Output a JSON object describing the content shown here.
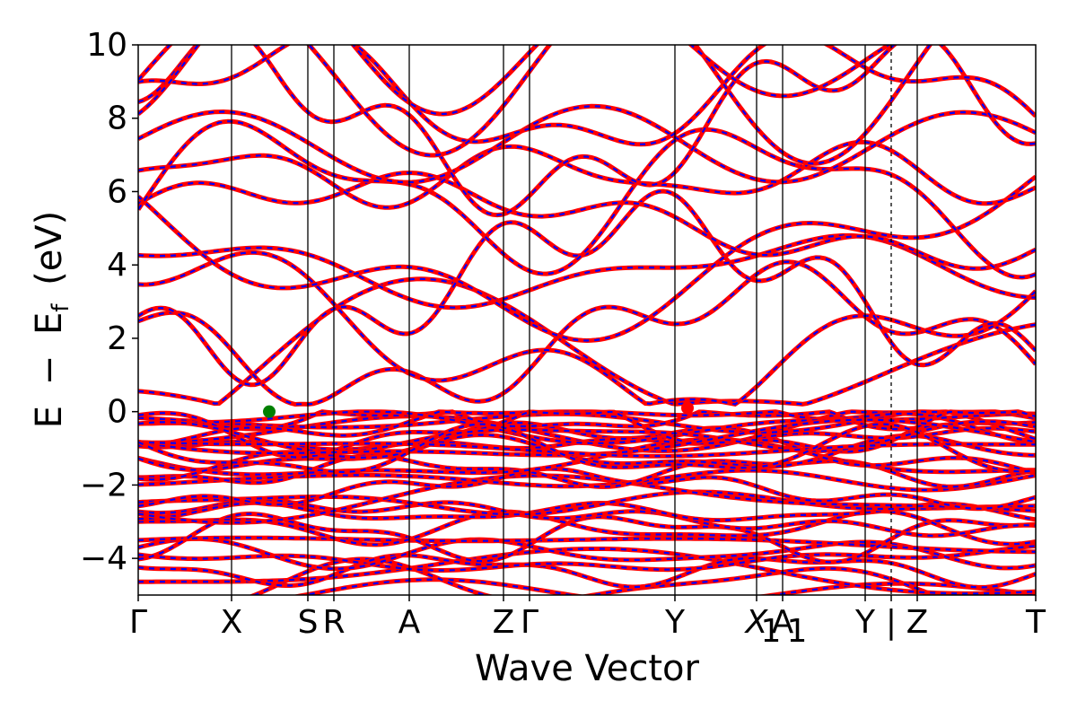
{
  "chart_data": {
    "type": "line",
    "title": "",
    "xlabel": "Wave Vector",
    "ylabel_parts": {
      "e": "E",
      "minus": "−",
      "ef": "E",
      "ef_sub": "f",
      "unit": "(eV)"
    },
    "ylim": [
      -5,
      10
    ],
    "yticks": [
      -4,
      -2,
      0,
      2,
      4,
      6,
      8,
      10
    ],
    "ytick_labels": [
      "−4",
      "−2",
      "0",
      "2",
      "4",
      "6",
      "8",
      "10"
    ],
    "xlim": [
      0,
      100
    ],
    "high_symmetry_points": [
      {
        "x": 0.0,
        "label": "Γ"
      },
      {
        "x": 10.4,
        "label": "X"
      },
      {
        "x": 18.9,
        "label": "S"
      },
      {
        "x": 21.8,
        "label": "R"
      },
      {
        "x": 30.2,
        "label": "A"
      },
      {
        "x": 40.7,
        "label": "Z"
      },
      {
        "x": 43.6,
        "label": "Γ"
      },
      {
        "x": 59.8,
        "label": "Y"
      },
      {
        "x": 68.9,
        "label": "X"
      },
      {
        "x": 71.8,
        "label": "A"
      },
      {
        "x": 81.0,
        "label": "Y"
      },
      {
        "x": 83.9,
        "label": "|"
      },
      {
        "x": 86.8,
        "label": "Z"
      },
      {
        "x": 100.0,
        "label": "T"
      }
    ],
    "x1_subscript": "1",
    "a1_subscript": "1",
    "segment_break_x": 83.9,
    "series": [
      {
        "style": "solid",
        "color": "#ff0000"
      },
      {
        "style": "dashed",
        "color": "#0000ff"
      }
    ],
    "markers": [
      {
        "role": "vbm",
        "x": 14.6,
        "y": 0.0,
        "color": "#008000"
      },
      {
        "role": "cbm",
        "x": 61.2,
        "y": 0.1,
        "color": "#ff0000"
      }
    ],
    "fermi_level": 0,
    "grid": false
  }
}
